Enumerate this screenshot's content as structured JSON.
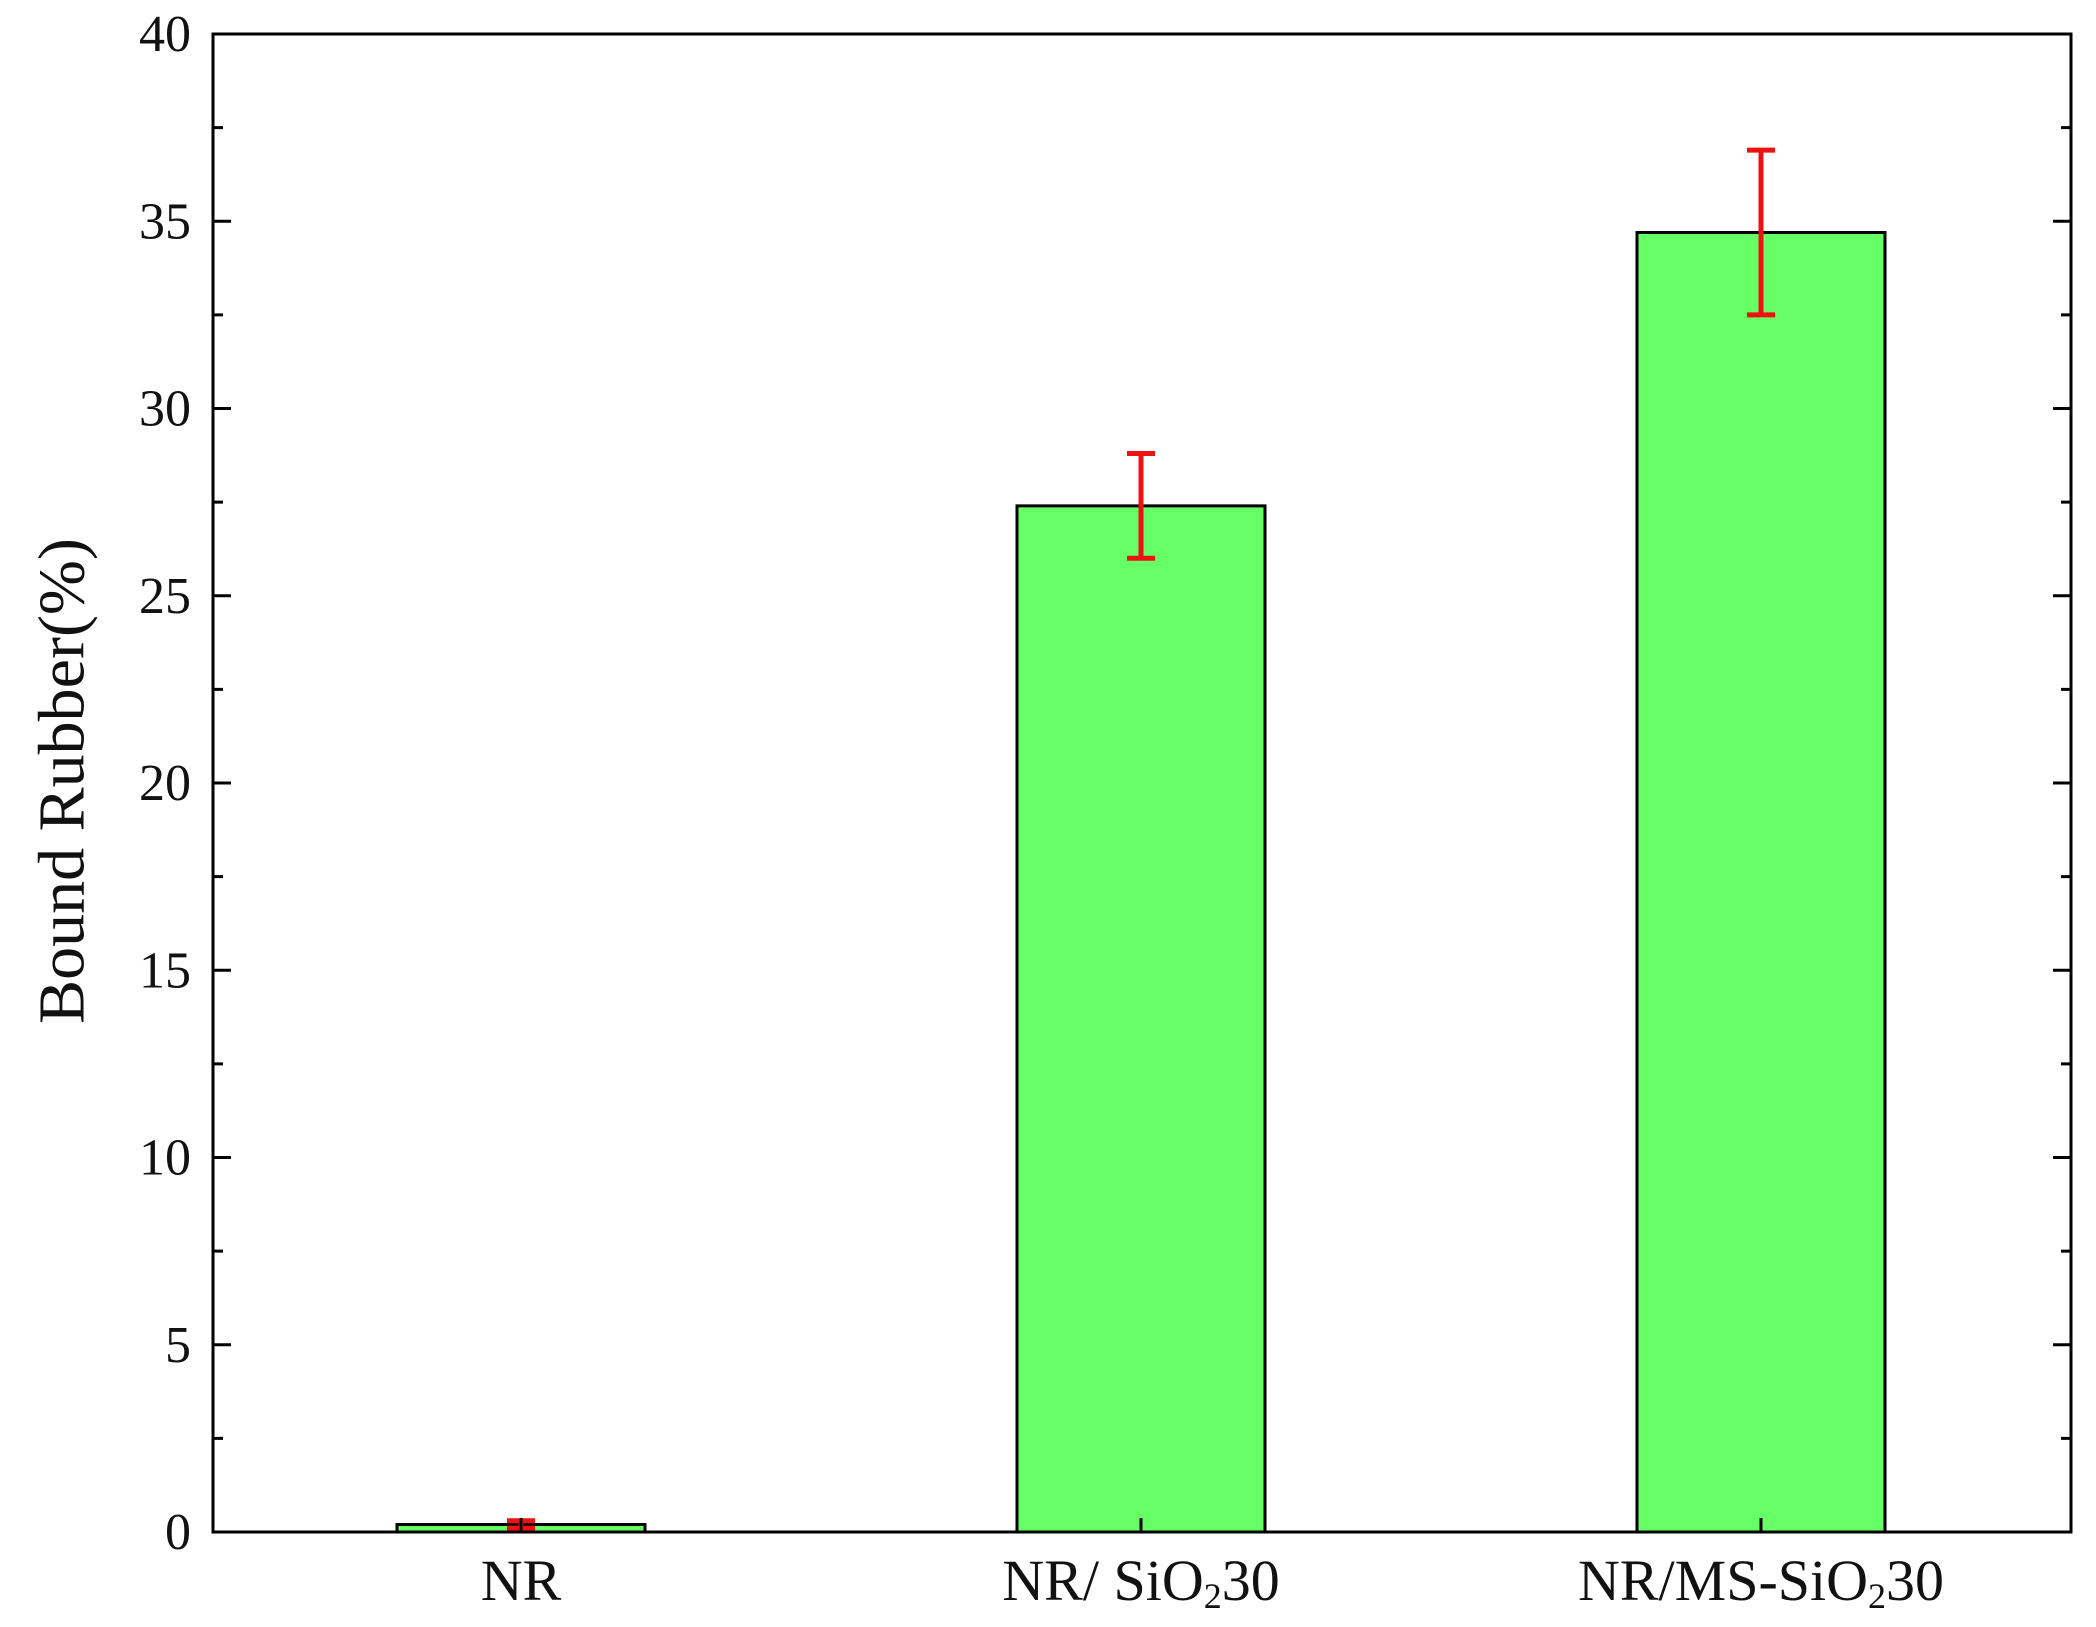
{
  "chart_data": {
    "type": "bar",
    "categories": [
      "NR",
      "NR/ SiO₂ 30",
      "NR/MS-SiO₂ 30"
    ],
    "category_labels": [
      {
        "base": "NR",
        "sub": "",
        "tail": ""
      },
      {
        "base": "NR/ SiO",
        "sub": "2",
        "tail": "30"
      },
      {
        "base": "NR/MS-SiO",
        "sub": "2",
        "tail": "30"
      }
    ],
    "values": [
      0.2,
      27.4,
      34.7
    ],
    "errors": [
      0.1,
      1.4,
      2.2
    ],
    "title": "",
    "xlabel": "",
    "ylabel": "Bound Rubber(%)",
    "ylim": [
      0,
      40
    ],
    "yticks": [
      0,
      5,
      10,
      15,
      20,
      25,
      30,
      35,
      40
    ],
    "grid": false,
    "legend": "none",
    "colors": {
      "bar_fill": "#66ff66",
      "bar_stroke": "#000000",
      "error_bar": "#ee1111",
      "axis": "#000000"
    }
  }
}
